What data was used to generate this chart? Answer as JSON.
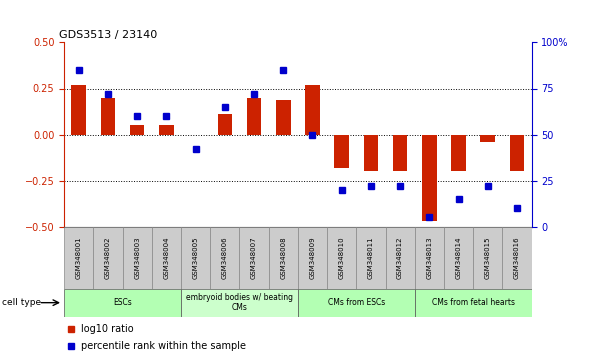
{
  "title": "GDS3513 / 23140",
  "samples": [
    "GSM348001",
    "GSM348002",
    "GSM348003",
    "GSM348004",
    "GSM348005",
    "GSM348006",
    "GSM348007",
    "GSM348008",
    "GSM348009",
    "GSM348010",
    "GSM348011",
    "GSM348012",
    "GSM348013",
    "GSM348014",
    "GSM348015",
    "GSM348016"
  ],
  "log10_ratio": [
    0.27,
    0.2,
    0.05,
    0.05,
    0.0,
    0.11,
    0.2,
    0.19,
    0.27,
    -0.18,
    -0.2,
    -0.2,
    -0.47,
    -0.2,
    -0.04,
    -0.2
  ],
  "percentile_rank": [
    85,
    72,
    60,
    60,
    42,
    65,
    72,
    85,
    50,
    20,
    22,
    22,
    5,
    15,
    22,
    10
  ],
  "bar_color": "#cc2200",
  "dot_color": "#0000cc",
  "cell_type_groups": [
    {
      "label": "ESCs",
      "start": 0,
      "end": 3,
      "color": "#b3ffb3"
    },
    {
      "label": "embryoid bodies w/ beating\nCMs",
      "start": 4,
      "end": 7,
      "color": "#ccffcc"
    },
    {
      "label": "CMs from ESCs",
      "start": 8,
      "end": 11,
      "color": "#b3ffb3"
    },
    {
      "label": "CMs from fetal hearts",
      "start": 12,
      "end": 15,
      "color": "#b3ffb3"
    }
  ],
  "ylim_left": [
    -0.5,
    0.5
  ],
  "ylim_right": [
    0,
    100
  ],
  "yticks_left": [
    -0.5,
    -0.25,
    0,
    0.25,
    0.5
  ],
  "yticks_right": [
    0,
    25,
    50,
    75,
    100
  ],
  "hlines": [
    -0.25,
    0,
    0.25
  ],
  "legend_items": [
    {
      "label": "log10 ratio",
      "color": "#cc2200"
    },
    {
      "label": "percentile rank within the sample",
      "color": "#0000cc"
    }
  ]
}
